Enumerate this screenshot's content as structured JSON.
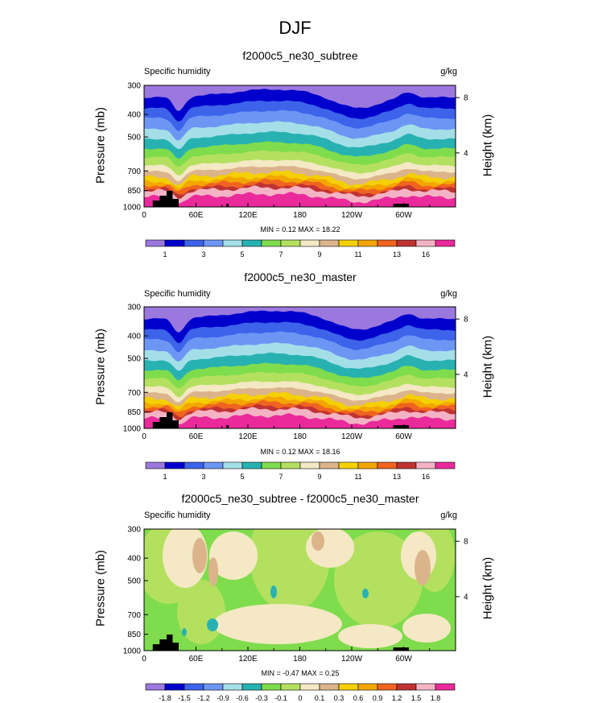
{
  "figure_title": "DJF",
  "colors": {
    "humidity_scale": [
      "#9b78de",
      "#0000cd",
      "#3c63ea",
      "#6d96f4",
      "#a4dfe8",
      "#27b2b1",
      "#7fdc4d",
      "#b4e060",
      "#f4e9c4",
      "#dcb48c",
      "#f4d000",
      "#f3a600",
      "#f06320",
      "#c03232",
      "#f4b3c4",
      "#ea2a9b"
    ],
    "diff_scale": [
      "#9b78de",
      "#0000cd",
      "#3c63ea",
      "#6d96f4",
      "#a4dfe8",
      "#27b2b1",
      "#7fdc4d",
      "#b4e060",
      "#f4e9c4",
      "#dcb48c",
      "#f4d000",
      "#f3a600",
      "#f06320",
      "#c03232",
      "#f4b3c4",
      "#ea2a9b"
    ],
    "topography": "#000000"
  },
  "chart_data": [
    {
      "type": "heatmap",
      "title": "f2000c5_ne30_subtree",
      "variable": "Specific humidity",
      "units": "g/kg",
      "xlabel": "",
      "ylabel": "Pressure (mb)",
      "ylabel_right": "Height (km)",
      "x_ticks": [
        "0",
        "60E",
        "120E",
        "180",
        "120W",
        "60W"
      ],
      "x_tick_lon": [
        0,
        60,
        120,
        180,
        240,
        300
      ],
      "xlim": [
        0,
        360
      ],
      "y_ticks": [
        "300",
        "400",
        "500",
        "700",
        "850",
        "1000"
      ],
      "y_tick_values": [
        300,
        400,
        500,
        700,
        850,
        1000
      ],
      "ylim": [
        1000,
        300
      ],
      "height_ticks": [
        "8",
        "4"
      ],
      "height_tick_km": [
        8,
        4
      ],
      "minmax": "MIN =  0.12  MAX =  18.22",
      "colorbar_labels": [
        "1",
        "3",
        "5",
        "7",
        "9",
        "11",
        "13",
        "16"
      ],
      "min": 0.12,
      "max": 18.22
    },
    {
      "type": "heatmap",
      "title": "f2000c5_ne30_master",
      "variable": "Specific humidity",
      "units": "g/kg",
      "xlabel": "",
      "ylabel": "Pressure (mb)",
      "ylabel_right": "Height (km)",
      "x_ticks": [
        "0",
        "60E",
        "120E",
        "180",
        "120W",
        "60W"
      ],
      "x_tick_lon": [
        0,
        60,
        120,
        180,
        240,
        300
      ],
      "xlim": [
        0,
        360
      ],
      "y_ticks": [
        "300",
        "400",
        "500",
        "700",
        "850",
        "1000"
      ],
      "y_tick_values": [
        300,
        400,
        500,
        700,
        850,
        1000
      ],
      "ylim": [
        1000,
        300
      ],
      "height_ticks": [
        "8",
        "4"
      ],
      "height_tick_km": [
        8,
        4
      ],
      "minmax": "MIN =  0.12  MAX =  18.16",
      "colorbar_labels": [
        "1",
        "3",
        "5",
        "7",
        "9",
        "11",
        "13",
        "16"
      ],
      "min": 0.12,
      "max": 18.16
    },
    {
      "type": "heatmap",
      "title": "f2000c5_ne30_subtree - f2000c5_ne30_master",
      "variable": "Specific humidity",
      "units": "g/kg",
      "xlabel": "",
      "ylabel": "Pressure (mb)",
      "ylabel_right": "Height (km)",
      "x_ticks": [
        "0",
        "60E",
        "120E",
        "180",
        "120W",
        "60W"
      ],
      "x_tick_lon": [
        0,
        60,
        120,
        180,
        240,
        300
      ],
      "xlim": [
        0,
        360
      ],
      "y_ticks": [
        "300",
        "400",
        "500",
        "700",
        "850",
        "1000"
      ],
      "y_tick_values": [
        300,
        400,
        500,
        700,
        850,
        1000
      ],
      "ylim": [
        1000,
        300
      ],
      "height_ticks": [
        "8",
        "4"
      ],
      "height_tick_km": [
        8,
        4
      ],
      "minmax": "MIN = -0.47  MAX =  0.25",
      "colorbar_labels": [
        "-1.8",
        "-1.5",
        "-1.2",
        "-0.9",
        "-0.6",
        "-0.3",
        "-0.1",
        "0",
        "0.1",
        "0.3",
        "0.6",
        "0.9",
        "1.2",
        "1.5",
        "1.8"
      ],
      "min": -0.47,
      "max": 0.25
    }
  ]
}
